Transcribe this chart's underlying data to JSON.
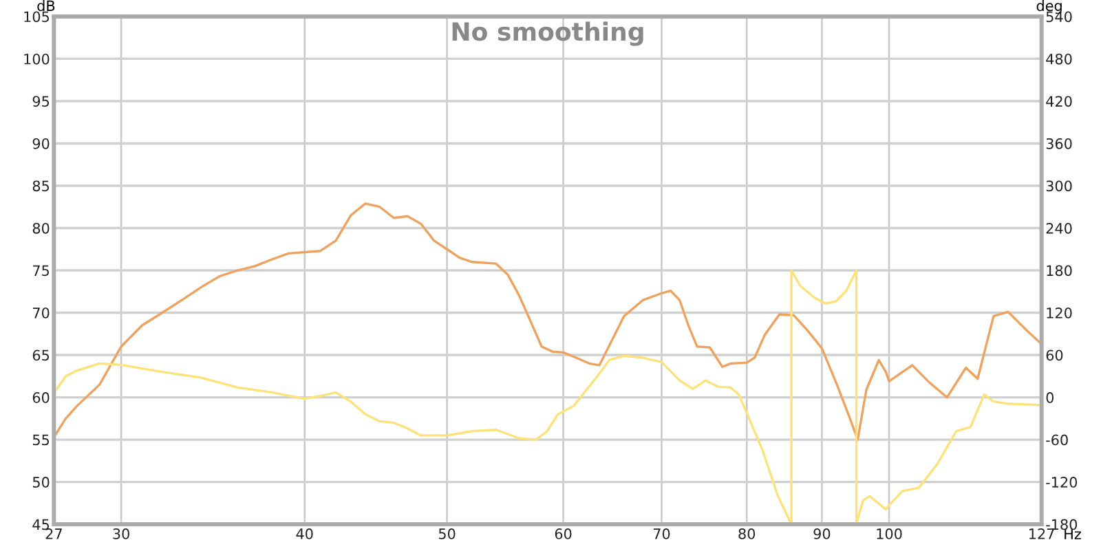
{
  "chart_data": {
    "type": "line",
    "title": "No smoothing",
    "xlabel": "Hz",
    "ylabel": "dB",
    "y2label": "deg",
    "log": "x",
    "grid": true,
    "xlim": [
      27,
      127
    ],
    "xticks": [
      27,
      30,
      40,
      50,
      60,
      70,
      80,
      90,
      100,
      127
    ],
    "ylim": [
      45,
      105
    ],
    "yticks": [
      45,
      50,
      55,
      60,
      65,
      70,
      75,
      80,
      85,
      90,
      95,
      100,
      105
    ],
    "y2lim": [
      -180,
      540
    ],
    "y2ticks": [
      -180,
      -120,
      -60,
      0,
      60,
      120,
      180,
      240,
      300,
      360,
      420,
      480,
      540
    ],
    "series": [
      {
        "color": "#eea25e",
        "x": [
          27,
          27.5,
          28,
          29,
          30,
          31,
          32,
          33,
          34,
          35,
          36,
          37,
          38,
          39,
          41,
          42,
          43,
          44,
          45,
          46,
          47,
          48,
          49,
          50,
          51,
          52,
          54,
          55,
          56,
          57,
          58,
          59,
          60,
          61,
          62.5,
          63.5,
          66,
          68,
          70,
          71,
          72,
          73,
          74,
          75.5,
          77,
          78,
          80,
          81,
          82.3,
          84.2,
          86.1,
          88,
          90,
          92.2,
          94,
          95.2,
          96.5,
          98.4,
          99.5,
          100,
          103.7,
          106.3,
          109.5,
          112.8,
          114.9,
          117.8,
          120.5,
          124.1,
          127
        ],
        "values": [
          55.3,
          57.5,
          59,
          61.5,
          66,
          68.5,
          70,
          71.5,
          73,
          74.3,
          75,
          75.5,
          76.3,
          77,
          77.3,
          78.5,
          81.5,
          82.9,
          82.5,
          81.2,
          81.4,
          80.5,
          78.5,
          77.5,
          76.5,
          76,
          75.8,
          74.5,
          72,
          69,
          66,
          65.4,
          65.3,
          64.8,
          64,
          63.8,
          69.6,
          71.5,
          72.3,
          72.6,
          71.5,
          68.5,
          66,
          65.9,
          63.6,
          64,
          64.1,
          64.7,
          67.4,
          69.8,
          69.7,
          67.9,
          65.8,
          61.4,
          57.6,
          55,
          60.9,
          64.4,
          63,
          61.9,
          63.8,
          61.9,
          60,
          63.5,
          62.2,
          69.6,
          70.1,
          67.9,
          66.3
        ]
      },
      {
        "color": "#fde27a",
        "axis": "y2",
        "x": [
          27,
          27.5,
          28,
          29,
          30,
          32,
          34,
          36,
          38,
          40,
          41,
          42,
          43,
          44,
          45,
          46,
          47,
          48,
          50,
          52,
          54,
          56,
          57.5,
          58.5,
          59.5,
          61,
          63.3,
          64.5,
          66,
          68,
          70,
          72,
          73.5,
          75,
          76.5,
          78,
          79,
          80,
          82,
          84,
          85.8,
          85.8,
          87,
          89,
          90.5,
          92,
          93.5,
          95,
          95,
          96,
          97,
          99.5,
          100,
          102.1,
          104.8,
          107.9,
          111.1,
          113.6,
          116.1,
          117.8,
          120.5,
          124.1,
          127
        ],
        "values": [
          6,
          30,
          38,
          48,
          46,
          36,
          28,
          14,
          7,
          -2,
          2,
          7,
          -6,
          -24,
          -34,
          -36,
          -44,
          -54,
          -54,
          -48,
          -46,
          -58,
          -60,
          -48,
          -24,
          -12,
          30,
          53,
          59,
          56,
          50,
          24,
          12,
          24,
          15,
          14,
          4,
          -22,
          -75,
          -140,
          -180,
          180,
          158,
          141,
          133,
          136,
          151,
          180,
          -180,
          -146,
          -140,
          -159,
          -153,
          -133,
          -128,
          -94,
          -48,
          -42,
          4,
          -6,
          -9,
          -10,
          -11
        ]
      }
    ]
  }
}
